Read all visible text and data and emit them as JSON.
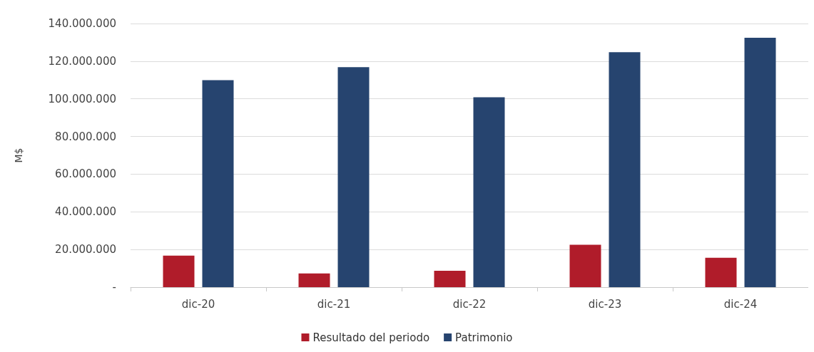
{
  "chart_data": {
    "type": "bar",
    "ylabel": "M$",
    "categories": [
      "dic-20",
      "dic-21",
      "dic-22",
      "dic-23",
      "dic-24"
    ],
    "series": [
      {
        "name": "Resultado del periodo",
        "color": "#b01c2a",
        "values": [
          16700000,
          7300000,
          8700000,
          22500000,
          15600000
        ]
      },
      {
        "name": "Patrimonio",
        "color": "#26446f",
        "values": [
          109900000,
          116800000,
          100800000,
          124800000,
          132400000
        ]
      }
    ],
    "ylim": [
      0,
      140000000
    ],
    "yticks": [
      {
        "value": 0,
        "label": "-"
      },
      {
        "value": 20000000,
        "label": "20.000.000"
      },
      {
        "value": 40000000,
        "label": "40.000.000"
      },
      {
        "value": 60000000,
        "label": "60.000.000"
      },
      {
        "value": 80000000,
        "label": "80.000.000"
      },
      {
        "value": 100000000,
        "label": "100.000.000"
      },
      {
        "value": 120000000,
        "label": "120.000.000"
      },
      {
        "value": 140000000,
        "label": "140.000.000"
      }
    ],
    "grid": "y",
    "legend": "bottom"
  }
}
